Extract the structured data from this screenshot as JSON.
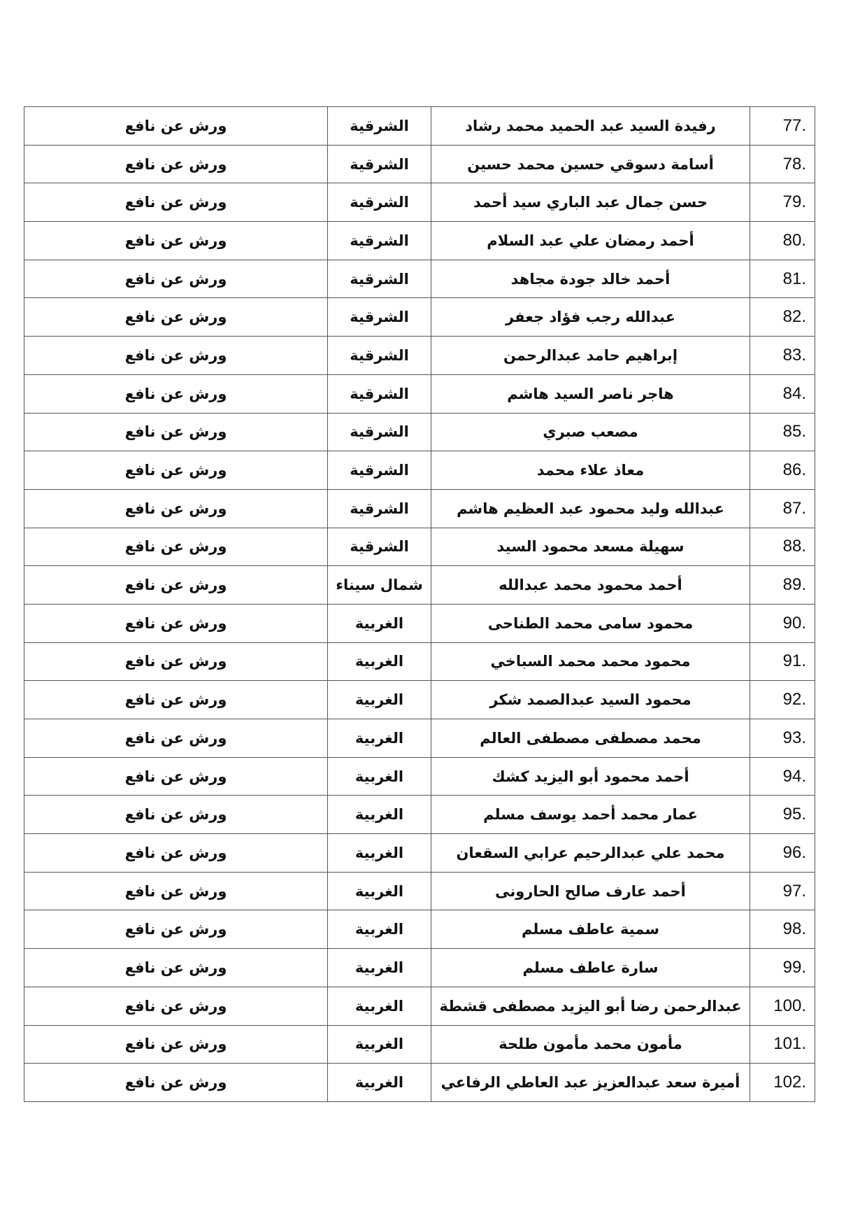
{
  "rows": [
    {
      "num": "77.",
      "name": "رفيدة السيد عبد الحميد محمد رشاد",
      "gov": "الشرقية",
      "riwaya": "ورش عن نافع"
    },
    {
      "num": "78.",
      "name": "أسامة دسوقي حسين محمد حسين",
      "gov": "الشرقية",
      "riwaya": "ورش عن نافع"
    },
    {
      "num": "79.",
      "name": "حسن جمال عبد الباري سيد أحمد",
      "gov": "الشرقية",
      "riwaya": "ورش عن نافع"
    },
    {
      "num": "80.",
      "name": "أحمد رمضان علي عبد السلام",
      "gov": "الشرقية",
      "riwaya": "ورش عن نافع"
    },
    {
      "num": "81.",
      "name": "أحمد خالد جودة مجاهد",
      "gov": "الشرقية",
      "riwaya": "ورش عن نافع"
    },
    {
      "num": "82.",
      "name": "عبدالله رجب فؤاد جعفر",
      "gov": "الشرقية",
      "riwaya": "ورش عن نافع"
    },
    {
      "num": "83.",
      "name": "إبراهيم حامد عبدالرحمن",
      "gov": "الشرقية",
      "riwaya": "ورش عن نافع"
    },
    {
      "num": "84.",
      "name": "هاجر ناصر السيد هاشم",
      "gov": "الشرقية",
      "riwaya": "ورش عن نافع"
    },
    {
      "num": "85.",
      "name": "مصعب صبري",
      "gov": "الشرقية",
      "riwaya": "ورش عن نافع"
    },
    {
      "num": "86.",
      "name": "معاذ علاء محمد",
      "gov": "الشرقية",
      "riwaya": "ورش عن نافع"
    },
    {
      "num": "87.",
      "name": "عبدالله وليد محمود عبد العظيم هاشم",
      "gov": "الشرقية",
      "riwaya": "ورش عن نافع"
    },
    {
      "num": "88.",
      "name": "سهيلة مسعد محمود السيد",
      "gov": "الشرقية",
      "riwaya": "ورش عن نافع"
    },
    {
      "num": "89.",
      "name": "أحمد محمود محمد عبدالله",
      "gov": "شمال سيناء",
      "riwaya": "ورش عن نافع"
    },
    {
      "num": "90.",
      "name": "محمود سامى محمد الطناحى",
      "gov": "الغربية",
      "riwaya": "ورش عن نافع"
    },
    {
      "num": "91.",
      "name": "محمود محمد محمد السباخي",
      "gov": "الغربية",
      "riwaya": "ورش عن نافع"
    },
    {
      "num": "92.",
      "name": "محمود السيد عبدالصمد شكر",
      "gov": "الغربية",
      "riwaya": "ورش عن نافع"
    },
    {
      "num": "93.",
      "name": "محمد مصطفى مصطفى العالم",
      "gov": "الغربية",
      "riwaya": "ورش عن نافع"
    },
    {
      "num": "94.",
      "name": "أحمد محمود أبو اليزيد كشك",
      "gov": "الغربية",
      "riwaya": "ورش عن نافع"
    },
    {
      "num": "95.",
      "name": "عمار محمد أحمد يوسف مسلم",
      "gov": "الغربية",
      "riwaya": "ورش عن نافع"
    },
    {
      "num": "96.",
      "name": "محمد علي عبدالرحيم عرابي السقعان",
      "gov": "الغربية",
      "riwaya": "ورش عن نافع"
    },
    {
      "num": "97.",
      "name": "أحمد عارف صالح الحارونى",
      "gov": "الغربية",
      "riwaya": "ورش عن نافع"
    },
    {
      "num": "98.",
      "name": "سمية عاطف مسلم",
      "gov": "الغربية",
      "riwaya": "ورش عن نافع"
    },
    {
      "num": "99.",
      "name": "سارة عاطف مسلم",
      "gov": "الغربية",
      "riwaya": "ورش عن نافع"
    },
    {
      "num": "100.",
      "name": "عبدالرحمن رضا أبو اليزيد مصطفى قشطة",
      "gov": "الغربية",
      "riwaya": "ورش عن نافع"
    },
    {
      "num": "101.",
      "name": "مأمون محمد مأمون طلحة",
      "gov": "الغربية",
      "riwaya": "ورش عن نافع"
    },
    {
      "num": "102.",
      "name": "أميرة سعد عبدالعزيز عبد العاطي الرفاعي",
      "gov": "الغربية",
      "riwaya": "ورش عن نافع"
    }
  ]
}
